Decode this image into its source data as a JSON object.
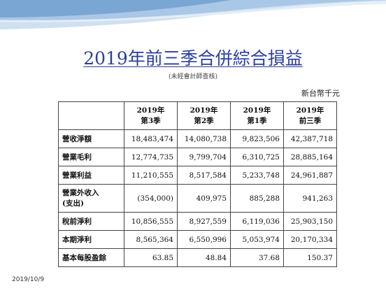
{
  "title": "2019年前三季合併綜合損益",
  "subtitle": "(未經會計師查核)",
  "unit": "新台幣千元",
  "columns": [
    {
      "year": "2019年",
      "period": "第3季"
    },
    {
      "year": "2019年",
      "period": "第2季"
    },
    {
      "year": "2019年",
      "period": "第1季"
    },
    {
      "year": "2019年",
      "period": "前三季"
    }
  ],
  "rows": [
    {
      "label": "營收淨額",
      "values": [
        "18,483,474",
        "14,080,738",
        "9,823,506",
        "42,387,718"
      ]
    },
    {
      "label": "營業毛利",
      "values": [
        "12,774,735",
        "9,799,704",
        "6,310,725",
        "28,885,164"
      ]
    },
    {
      "label": "營業利益",
      "values": [
        "11,210,555",
        "8,517,584",
        "5,233,748",
        "24,961,887"
      ]
    },
    {
      "label_line1": "營業外收入",
      "label_line2": "(支出)",
      "values": [
        "(354,000)",
        "409,975",
        "885,288",
        "941,263"
      ]
    },
    {
      "label": "稅前淨利",
      "values": [
        "10,856,555",
        "8,927,559",
        "6,119,036",
        "25,903,150"
      ]
    },
    {
      "label": "本期淨利",
      "values": [
        "8,565,364",
        "6,550,996",
        "5,053,974",
        "20,170,334"
      ]
    },
    {
      "label": "基本每股盈餘",
      "values": [
        "63.85",
        "48.84",
        "37.68",
        "150.37"
      ]
    }
  ],
  "footer_date": "2019/10/9",
  "colors": {
    "title": "#2b3f9c",
    "wave_dark": "#7aa6d4",
    "wave_light": "#cfe0f1"
  }
}
